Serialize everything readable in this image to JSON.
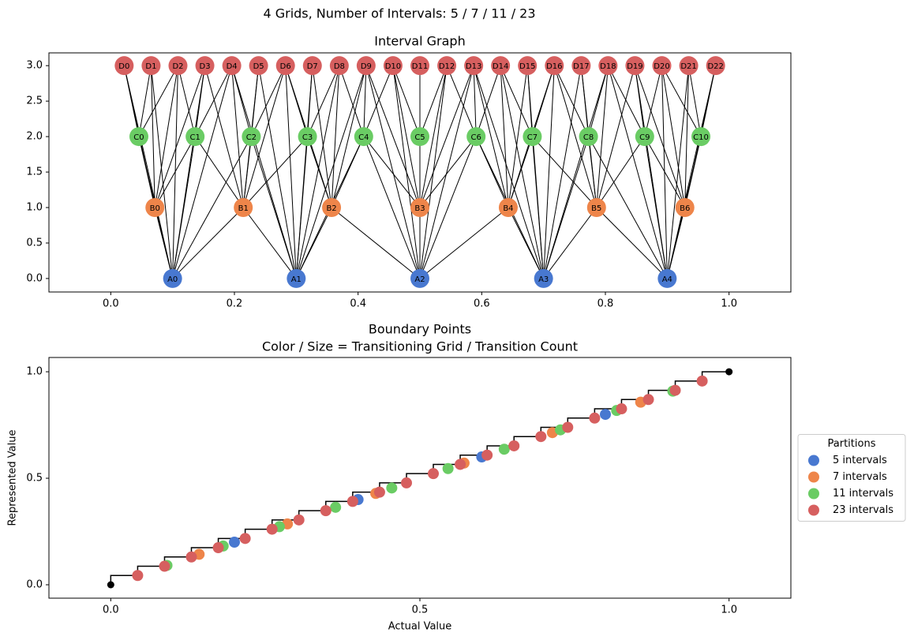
{
  "title": "4 Grids, Number of Intervals: 5 / 7 / 11 / 23",
  "chart_data": [
    {
      "type": "graph",
      "title": "Interval Graph",
      "xlim": [
        -0.1,
        1.1
      ],
      "ylim": [
        -0.19,
        3.18
      ],
      "xticks": [
        {
          "value": 0,
          "label": "0.0"
        },
        0.2,
        0.4,
        0.6,
        0.8,
        {
          "value": 1,
          "label": "1.0"
        }
      ],
      "yticks": [
        {
          "value": 0,
          "label": "0.0"
        },
        0.5,
        {
          "value": 1,
          "label": "1.0"
        },
        1.5,
        {
          "value": 2,
          "label": "2.0"
        },
        2.5,
        {
          "value": 3,
          "label": "3.0"
        }
      ],
      "series": [
        {
          "color": "#4878d0",
          "labels": [
            "A0",
            "A1",
            "A2",
            "A3",
            "A4"
          ],
          "x": [
            0.1,
            0.3,
            0.5,
            0.7,
            0.9
          ],
          "values": [
            0,
            0,
            0,
            0,
            0
          ]
        },
        {
          "color": "#ee854a",
          "labels": [
            "B0",
            "B1",
            "B2",
            "B3",
            "B4",
            "B5",
            "B6"
          ],
          "x": [
            0.0714,
            0.2143,
            0.3571,
            0.5,
            0.6429,
            0.7857,
            0.9286
          ],
          "values": [
            1,
            1,
            1,
            1,
            1,
            1,
            1
          ]
        },
        {
          "color": "#6acc64",
          "labels": [
            "C0",
            "C1",
            "C2",
            "C3",
            "C4",
            "C5",
            "C6",
            "C7",
            "C8",
            "C9",
            "C10"
          ],
          "x": [
            0.0455,
            0.1364,
            0.2273,
            0.3182,
            0.4091,
            0.5,
            0.5909,
            0.6818,
            0.7727,
            0.8636,
            0.9545
          ],
          "values": [
            2,
            2,
            2,
            2,
            2,
            2,
            2,
            2,
            2,
            2,
            2
          ]
        },
        {
          "color": "#d65f5f",
          "labels": [
            "D0",
            "D1",
            "D2",
            "D3",
            "D4",
            "D5",
            "D6",
            "D7",
            "D8",
            "D9",
            "D10",
            "D11",
            "D12",
            "D13",
            "D14",
            "D15",
            "D16",
            "D17",
            "D18",
            "D19",
            "D20",
            "D21",
            "D22"
          ],
          "x": [
            0.0217,
            0.0652,
            0.1087,
            0.1522,
            0.1957,
            0.2391,
            0.2826,
            0.3261,
            0.3696,
            0.413,
            0.4565,
            0.5,
            0.5435,
            0.587,
            0.6304,
            0.6739,
            0.7174,
            0.7609,
            0.8043,
            0.8478,
            0.8913,
            0.9348,
            0.9783
          ],
          "values": [
            3,
            3,
            3,
            3,
            3,
            3,
            3,
            3,
            3,
            3,
            3,
            3,
            3,
            3,
            3,
            3,
            3,
            3,
            3,
            3,
            3,
            3,
            3
          ]
        }
      ]
    },
    {
      "type": "scatter",
      "title": "Boundary Points",
      "subtitle": "Color / Size = Transitioning Grid / Transition Count",
      "x_label": "Actual Value",
      "y_label": "Represented Value",
      "xlim": [
        -0.1,
        1.1
      ],
      "ylim": [
        -0.063,
        1.067
      ],
      "xticks": [
        {
          "value": 0,
          "label": "0.0"
        },
        0.5,
        {
          "value": 1,
          "label": "1.0"
        }
      ],
      "yticks": [
        {
          "value": 0,
          "label": "0.0"
        },
        0.5,
        {
          "value": 1,
          "label": "1.0"
        }
      ],
      "legend_title": "Partitions",
      "legend_position": "right",
      "step": {
        "color": "#000000",
        "x": [
          0,
          0.0435,
          0.087,
          0.1304,
          0.1739,
          0.2174,
          0.2609,
          0.3043,
          0.3478,
          0.3913,
          0.4348,
          0.4783,
          0.5217,
          0.5652,
          0.6087,
          0.6522,
          0.6957,
          0.7391,
          0.7826,
          0.8261,
          0.8696,
          0.913,
          0.9565,
          1
        ],
        "values": [
          0,
          0.0435,
          0.087,
          0.1304,
          0.1739,
          0.2174,
          0.2609,
          0.3043,
          0.3478,
          0.3913,
          0.4348,
          0.4783,
          0.5217,
          0.5652,
          0.6087,
          0.6522,
          0.6957,
          0.7391,
          0.7826,
          0.8261,
          0.8696,
          0.913,
          0.9565,
          1
        ]
      },
      "endpoints": {
        "color": "#000000",
        "x": [
          0,
          1
        ],
        "values": [
          0,
          1
        ]
      },
      "series": [
        {
          "name": "5 intervals",
          "color": "#4878d0",
          "x": [
            0.2,
            0.4,
            0.6,
            0.8
          ],
          "values": [
            0.2,
            0.4,
            0.6,
            0.8
          ]
        },
        {
          "name": "7 intervals",
          "color": "#ee854a",
          "x": [
            0.1429,
            0.2857,
            0.4286,
            0.5714,
            0.7143,
            0.8571
          ],
          "values": [
            0.1429,
            0.2857,
            0.4286,
            0.5714,
            0.7143,
            0.8571
          ]
        },
        {
          "name": "11 intervals",
          "color": "#6acc64",
          "x": [
            0.0909,
            0.1818,
            0.2727,
            0.3636,
            0.4545,
            0.5455,
            0.6364,
            0.7273,
            0.8182,
            0.9091
          ],
          "values": [
            0.0909,
            0.1818,
            0.2727,
            0.3636,
            0.4545,
            0.5455,
            0.6364,
            0.7273,
            0.8182,
            0.9091
          ]
        },
        {
          "name": "23 intervals",
          "color": "#d65f5f",
          "x": [
            0.0435,
            0.087,
            0.1304,
            0.1739,
            0.2174,
            0.2609,
            0.3043,
            0.3478,
            0.3913,
            0.4348,
            0.4783,
            0.5217,
            0.5652,
            0.6087,
            0.6522,
            0.6957,
            0.7391,
            0.7826,
            0.8261,
            0.8696,
            0.913,
            0.9565
          ],
          "values": [
            0.0435,
            0.087,
            0.1304,
            0.1739,
            0.2174,
            0.2609,
            0.3043,
            0.3478,
            0.3913,
            0.4348,
            0.4783,
            0.5217,
            0.5652,
            0.6087,
            0.6522,
            0.6957,
            0.7391,
            0.7826,
            0.8261,
            0.8696,
            0.913,
            0.9565
          ]
        }
      ]
    }
  ]
}
